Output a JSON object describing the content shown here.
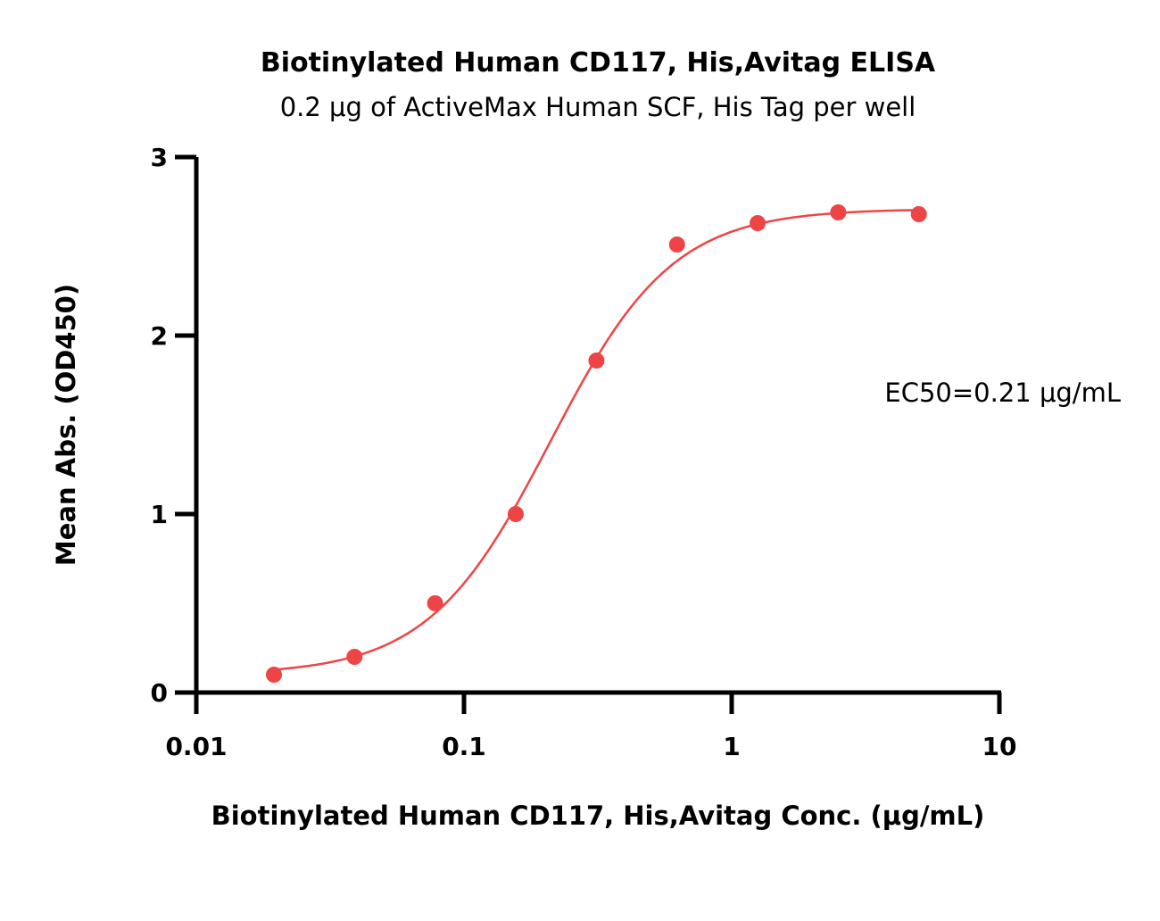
{
  "chart_data": {
    "type": "scatter",
    "title": "Biotinylated Human CD117, His,Avitag ELISA",
    "subtitle": "0.2 μg of ActiveMax Human SCF, His Tag per well",
    "xlabel": "Biotinylated Human CD117, His,Avitag Conc. (μg/mL)",
    "ylabel": "Mean Abs. (OD450)",
    "x_scale": "log",
    "xlim": [
      0.01,
      10
    ],
    "ylim": [
      0,
      3
    ],
    "x_ticks": [
      "0.01",
      "0.1",
      "1",
      "10"
    ],
    "y_ticks": [
      "0",
      "1",
      "2",
      "3"
    ],
    "grid": false,
    "annotation": "EC50=0.21 μg/mL",
    "colors": {
      "series": "#ef4446",
      "axis": "#000000"
    },
    "series": [
      {
        "x": [
          0.0195,
          0.039,
          0.078,
          0.156,
          0.3125,
          0.625,
          1.25,
          2.5,
          5
        ],
        "y": [
          0.1,
          0.2,
          0.5,
          1.0,
          1.86,
          2.51,
          2.63,
          2.69,
          2.68
        ],
        "fit": "4PL sigmoidal curve",
        "fit_params": {
          "bottom": 0.1,
          "top": 2.71,
          "ec50": 0.21,
          "hill": 1.9
        }
      }
    ]
  }
}
